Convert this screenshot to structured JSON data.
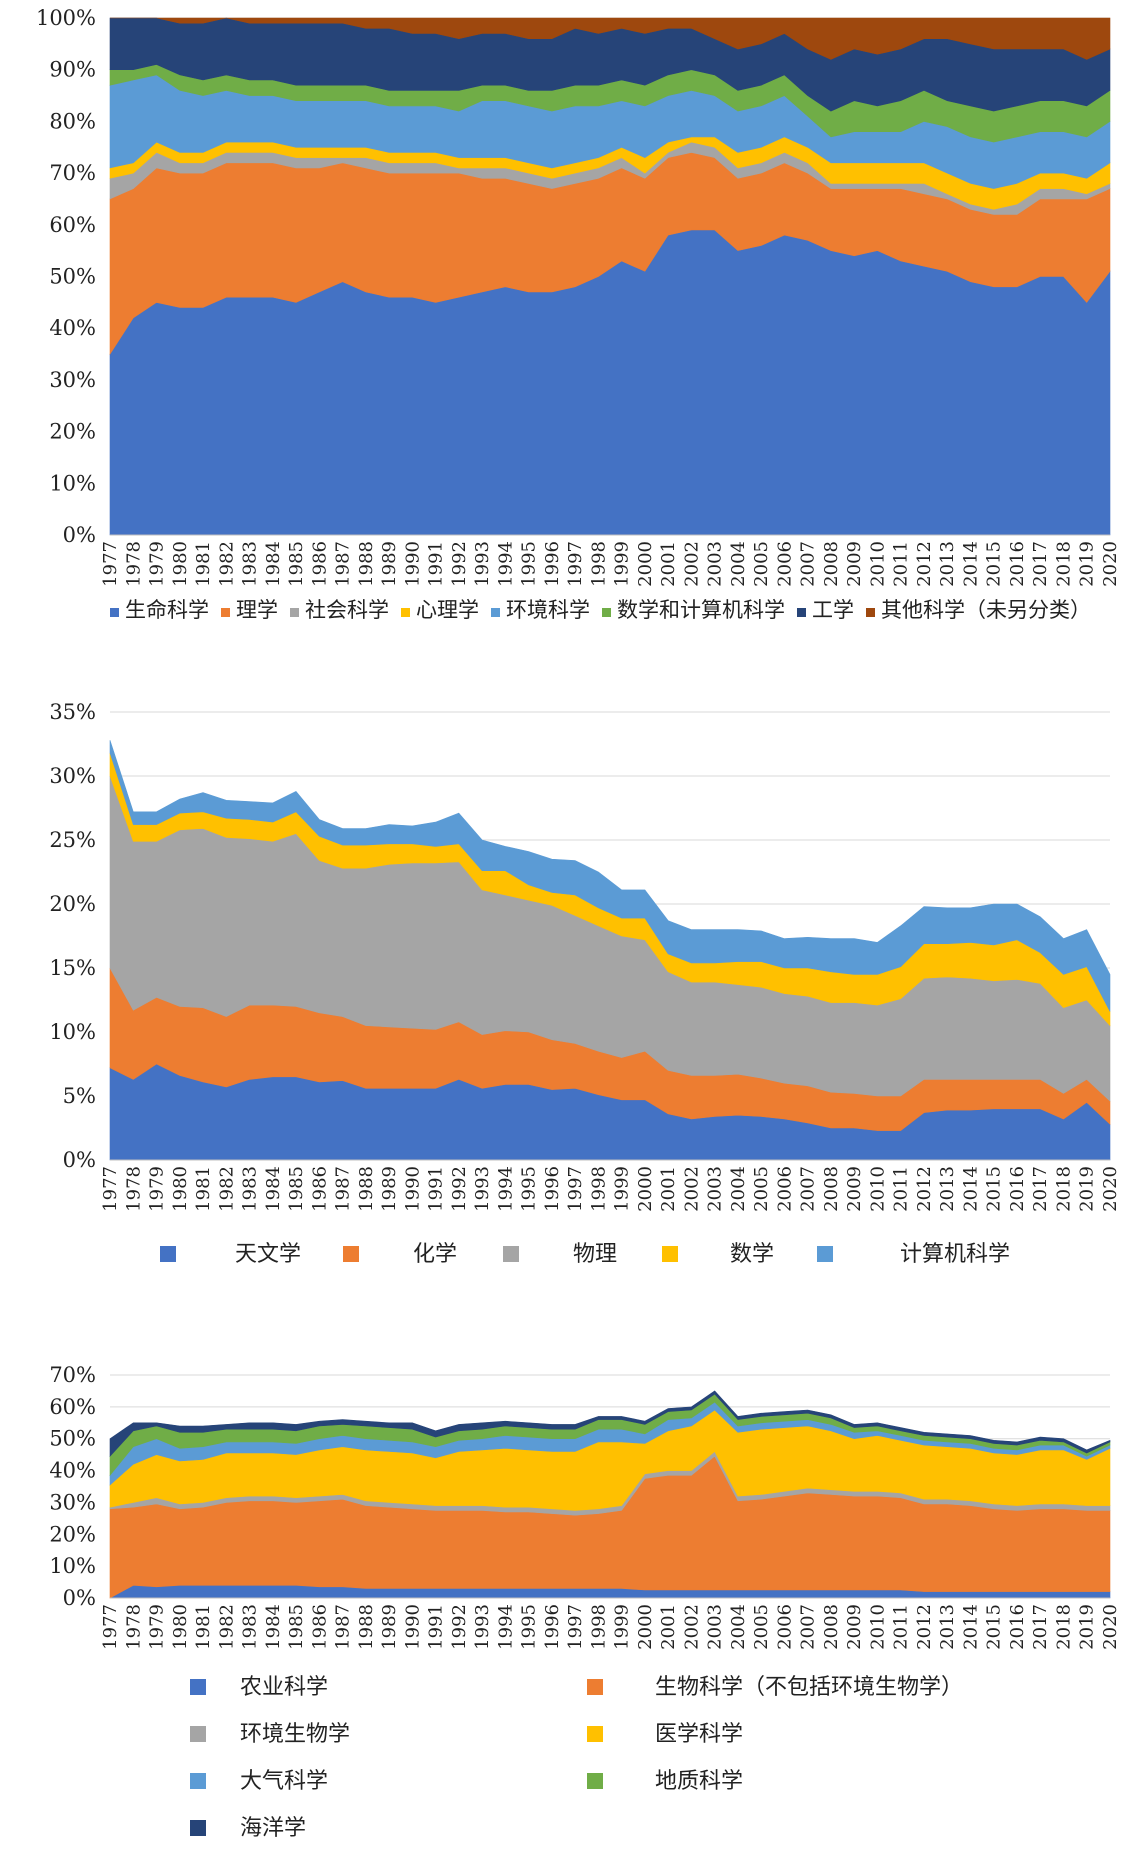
{
  "chart_data": [
    {
      "type": "area",
      "stacked": true,
      "grid": true,
      "legend_placement": "bottom",
      "ylim": [
        0,
        100
      ],
      "y_unit": "%",
      "yticks": [
        "0%",
        "10%",
        "20%",
        "30%",
        "40%",
        "50%",
        "60%",
        "70%",
        "80%",
        "90%",
        "100%"
      ],
      "x": [
        "1977",
        "1978",
        "1979",
        "1980",
        "1981",
        "1982",
        "1983",
        "1984",
        "1985",
        "1986",
        "1987",
        "1988",
        "1989",
        "1990",
        "1991",
        "1992",
        "1993",
        "1994",
        "1995",
        "1996",
        "1997",
        "1998",
        "1999",
        "2000",
        "2001",
        "2002",
        "2003",
        "2004",
        "2005",
        "2006",
        "2007",
        "2008",
        "2009",
        "2010",
        "2011",
        "2012",
        "2013",
        "2014",
        "2015",
        "2016",
        "2017",
        "2018",
        "2019",
        "2020"
      ],
      "series": [
        {
          "name": "生命科学",
          "color": "#4472C4",
          "values": [
            35,
            42,
            45,
            44,
            44,
            46,
            46,
            46,
            45,
            47,
            49,
            47,
            46,
            46,
            45,
            46,
            47,
            48,
            47,
            47,
            48,
            50,
            53,
            51,
            58,
            59,
            59,
            55,
            56,
            58,
            57,
            55,
            54,
            55,
            53,
            52,
            51,
            49,
            48,
            48,
            50,
            50,
            45,
            51
          ]
        },
        {
          "name": "理学",
          "color": "#ED7D31",
          "values": [
            30,
            25,
            26,
            26,
            26,
            26,
            26,
            26,
            26,
            24,
            23,
            24,
            24,
            24,
            25,
            24,
            22,
            21,
            21,
            20,
            20,
            19,
            18,
            18,
            15,
            15,
            14,
            14,
            14,
            14,
            13,
            12,
            13,
            12,
            14,
            14,
            14,
            14,
            14,
            14,
            15,
            15,
            20,
            16
          ]
        },
        {
          "name": "社会科学",
          "color": "#A5A5A5",
          "values": [
            4,
            3,
            3,
            2,
            2,
            2,
            2,
            2,
            2,
            2,
            1,
            2,
            2,
            2,
            2,
            1,
            2,
            2,
            2,
            2,
            2,
            2,
            2,
            1,
            1,
            2,
            2,
            2,
            2,
            2,
            2,
            1,
            1,
            1,
            1,
            2,
            1,
            1,
            1,
            2,
            2,
            2,
            1,
            1
          ]
        },
        {
          "name": "心理学",
          "color": "#FFC000",
          "values": [
            2,
            2,
            2,
            2,
            2,
            2,
            2,
            2,
            2,
            2,
            2,
            2,
            2,
            2,
            2,
            2,
            2,
            2,
            2,
            2,
            2,
            2,
            2,
            3,
            2,
            1,
            2,
            3,
            3,
            3,
            3,
            4,
            4,
            4,
            4,
            4,
            4,
            4,
            4,
            4,
            3,
            3,
            3,
            4
          ]
        },
        {
          "name": "环境科学",
          "color": "#5B9BD5",
          "values": [
            16,
            16,
            13,
            12,
            11,
            10,
            9,
            9,
            9,
            9,
            9,
            9,
            9,
            9,
            9,
            9,
            11,
            11,
            11,
            11,
            11,
            10,
            9,
            10,
            9,
            9,
            8,
            8,
            8,
            8,
            6,
            5,
            6,
            6,
            6,
            8,
            9,
            9,
            9,
            9,
            8,
            8,
            8,
            8
          ]
        },
        {
          "name": "数学和计算机科学",
          "color": "#70AD47",
          "values": [
            3,
            2,
            2,
            3,
            3,
            3,
            3,
            3,
            3,
            3,
            3,
            3,
            3,
            3,
            3,
            4,
            3,
            3,
            3,
            4,
            4,
            4,
            4,
            4,
            4,
            4,
            4,
            4,
            4,
            4,
            4,
            5,
            6,
            5,
            6,
            6,
            5,
            6,
            6,
            6,
            6,
            6,
            6,
            6
          ]
        },
        {
          "name": "工学",
          "color": "#264478",
          "values": [
            10,
            10,
            9,
            10,
            11,
            11,
            11,
            11,
            12,
            12,
            12,
            11,
            12,
            11,
            11,
            10,
            10,
            10,
            10,
            10,
            11,
            10,
            10,
            10,
            9,
            8,
            7,
            8,
            8,
            8,
            9,
            10,
            10,
            10,
            10,
            10,
            12,
            12,
            12,
            11,
            10,
            10,
            9,
            8
          ]
        },
        {
          "name": "其他科学（未另分类）",
          "color": "#9E480E",
          "values": [
            0,
            0,
            0,
            1,
            1,
            0,
            1,
            1,
            1,
            1,
            1,
            2,
            2,
            3,
            3,
            4,
            3,
            3,
            4,
            4,
            4,
            3,
            2,
            3,
            2,
            2,
            4,
            6,
            5,
            3,
            6,
            8,
            6,
            7,
            6,
            4,
            4,
            5,
            6,
            6,
            6,
            6,
            8,
            6
          ]
        }
      ]
    },
    {
      "type": "area",
      "stacked": true,
      "grid": true,
      "legend_placement": "bottom",
      "ylim": [
        0,
        35
      ],
      "y_unit": "%",
      "yticks": [
        "0%",
        "5%",
        "10%",
        "15%",
        "20%",
        "25%",
        "30%",
        "35%"
      ],
      "x": [
        "1977",
        "1978",
        "1979",
        "1980",
        "1981",
        "1982",
        "1983",
        "1984",
        "1985",
        "1986",
        "1987",
        "1988",
        "1989",
        "1990",
        "1991",
        "1992",
        "1993",
        "1994",
        "1995",
        "1996",
        "1997",
        "1998",
        "1999",
        "2000",
        "2001",
        "2002",
        "2003",
        "2004",
        "2005",
        "2006",
        "2007",
        "2008",
        "2009",
        "2010",
        "2011",
        "2012",
        "2013",
        "2014",
        "2015",
        "2016",
        "2017",
        "2018",
        "2019",
        "2020"
      ],
      "series": [
        {
          "name": "天文学",
          "color": "#4472C4",
          "values": [
            7.2,
            6.3,
            7.5,
            6.6,
            6.1,
            5.7,
            6.3,
            6.5,
            6.5,
            6.1,
            6.2,
            5.6,
            5.6,
            5.6,
            5.6,
            6.3,
            5.6,
            5.9,
            5.9,
            5.5,
            5.6,
            5.1,
            4.7,
            4.7,
            3.6,
            3.2,
            3.4,
            3.5,
            3.4,
            3.2,
            2.9,
            2.5,
            2.5,
            2.3,
            2.3,
            3.7,
            3.9,
            3.9,
            4.0,
            4.0,
            4.0,
            3.2,
            4.5,
            2.8
          ]
        },
        {
          "name": "化学",
          "color": "#ED7D31",
          "values": [
            7.8,
            5.4,
            5.2,
            5.4,
            5.8,
            5.5,
            5.8,
            5.6,
            5.5,
            5.4,
            5.0,
            4.9,
            4.8,
            4.7,
            4.6,
            4.5,
            4.2,
            4.2,
            4.1,
            3.9,
            3.5,
            3.4,
            3.3,
            3.8,
            3.4,
            3.4,
            3.2,
            3.2,
            3.0,
            2.8,
            2.9,
            2.8,
            2.7,
            2.7,
            2.7,
            2.6,
            2.4,
            2.4,
            2.3,
            2.3,
            2.3,
            2.0,
            1.8,
            1.8
          ]
        },
        {
          "name": "物理",
          "color": "#A5A5A5",
          "values": [
            15.0,
            13.2,
            12.2,
            13.8,
            14.0,
            14.0,
            13.0,
            12.8,
            13.5,
            11.9,
            11.6,
            12.3,
            12.7,
            12.9,
            13.0,
            12.5,
            11.3,
            10.6,
            10.3,
            10.5,
            10.0,
            9.8,
            9.5,
            8.7,
            7.7,
            7.3,
            7.3,
            7.0,
            7.1,
            7.0,
            7.0,
            7.0,
            7.1,
            7.1,
            7.6,
            7.9,
            8.0,
            7.9,
            7.7,
            7.8,
            7.5,
            6.7,
            6.2,
            5.9
          ]
        },
        {
          "name": "数学",
          "color": "#FFC000",
          "values": [
            1.8,
            1.3,
            1.3,
            1.3,
            1.3,
            1.5,
            1.5,
            1.5,
            1.7,
            1.9,
            1.8,
            1.8,
            1.6,
            1.5,
            1.3,
            1.4,
            1.5,
            1.9,
            1.2,
            1.0,
            1.6,
            1.4,
            1.4,
            1.7,
            1.4,
            1.5,
            1.5,
            1.8,
            2.0,
            2.0,
            2.2,
            2.4,
            2.2,
            2.4,
            2.5,
            2.7,
            2.6,
            2.8,
            2.8,
            3.1,
            2.4,
            2.6,
            2.6,
            1.1
          ]
        },
        {
          "name": "计算机科学",
          "color": "#5B9BD5",
          "values": [
            1.0,
            1.0,
            1.0,
            1.1,
            1.5,
            1.4,
            1.4,
            1.5,
            1.6,
            1.3,
            1.3,
            1.3,
            1.5,
            1.4,
            1.9,
            2.4,
            2.4,
            1.9,
            2.6,
            2.6,
            2.7,
            2.8,
            2.2,
            2.2,
            2.6,
            2.6,
            2.6,
            2.5,
            2.4,
            2.3,
            2.4,
            2.6,
            2.8,
            2.5,
            3.2,
            2.9,
            2.8,
            2.7,
            3.2,
            2.8,
            2.8,
            2.8,
            2.9,
            2.9
          ]
        }
      ]
    },
    {
      "type": "area",
      "stacked": true,
      "grid": true,
      "legend_placement": "bottom",
      "ylim": [
        0,
        70
      ],
      "y_unit": "%",
      "yticks": [
        "0%",
        "10%",
        "20%",
        "30%",
        "40%",
        "50%",
        "60%",
        "70%"
      ],
      "x": [
        "1977",
        "1978",
        "1979",
        "1980",
        "1981",
        "1982",
        "1983",
        "1984",
        "1985",
        "1986",
        "1987",
        "1988",
        "1989",
        "1990",
        "1991",
        "1992",
        "1993",
        "1994",
        "1995",
        "1996",
        "1997",
        "1998",
        "1999",
        "2000",
        "2001",
        "2002",
        "2003",
        "2004",
        "2005",
        "2006",
        "2007",
        "2008",
        "2009",
        "2010",
        "2011",
        "2012",
        "2013",
        "2014",
        "2015",
        "2016",
        "2017",
        "2018",
        "2019",
        "2020"
      ],
      "series": [
        {
          "name": "农业科学",
          "color": "#4472C4",
          "values": [
            0,
            4,
            3.5,
            4,
            4,
            4,
            4,
            4,
            4,
            3.5,
            3.5,
            3,
            3,
            3,
            3,
            3,
            3,
            3,
            3,
            3,
            3,
            3,
            3,
            2.5,
            2.5,
            2.5,
            2.5,
            2.5,
            2.5,
            2.5,
            2.5,
            2.5,
            2.5,
            2.5,
            2.5,
            2,
            2,
            2,
            2,
            2,
            2,
            2,
            2,
            2
          ]
        },
        {
          "name": "生物科学（不包括环境生物学）",
          "color": "#ED7D31",
          "values": [
            28,
            24.5,
            26,
            24,
            24.5,
            26,
            26.5,
            26.5,
            26,
            27,
            27.5,
            26,
            25.5,
            25,
            24.5,
            24.5,
            24.5,
            24,
            24,
            23.5,
            23,
            23.5,
            24.5,
            35,
            36,
            36,
            42,
            28,
            28.5,
            29.5,
            30.5,
            30,
            29.5,
            29.5,
            29,
            27.5,
            27.5,
            27,
            26,
            25.5,
            26,
            26,
            25.5,
            25.5
          ]
        },
        {
          "name": "环境生物学",
          "color": "#A5A5A5",
          "values": [
            0.5,
            1.5,
            2,
            1.5,
            1.5,
            1.5,
            1.5,
            1.5,
            1.5,
            1.5,
            1.5,
            1.5,
            1.5,
            1.5,
            1.5,
            1.5,
            1.5,
            1.5,
            1.5,
            1.5,
            1.5,
            1.5,
            1.5,
            1.5,
            1.5,
            1.5,
            1.5,
            1.5,
            1.5,
            1.5,
            1.5,
            1.5,
            1.5,
            1.5,
            1.5,
            1.5,
            1.5,
            1.5,
            1.5,
            1.5,
            1.5,
            1.5,
            1.5,
            1.5
          ]
        },
        {
          "name": "医学科学",
          "color": "#FFC000",
          "values": [
            7,
            12,
            13.5,
            13.5,
            13.5,
            14,
            13.5,
            13.5,
            13.5,
            14.5,
            15,
            16,
            16,
            16,
            15,
            17,
            17.5,
            18.5,
            18,
            18,
            18.5,
            21,
            20,
            9.5,
            12.5,
            14,
            13,
            20,
            20.5,
            20,
            19.5,
            18.5,
            16.5,
            17.5,
            16.5,
            17,
            16.5,
            16.5,
            16,
            16,
            17,
            17,
            14.5,
            18
          ]
        },
        {
          "name": "大气科学",
          "color": "#5B9BD5",
          "values": [
            3,
            5.5,
            5,
            4,
            4,
            3.5,
            3.5,
            3.5,
            3.5,
            3.5,
            3.5,
            3.5,
            3.5,
            3.5,
            3.5,
            3.5,
            3.5,
            4,
            4,
            4,
            4,
            4,
            4,
            3,
            3.5,
            2.5,
            2.5,
            2,
            2,
            2,
            2,
            2,
            2,
            1.5,
            1.5,
            1.5,
            1.5,
            1.5,
            1.5,
            1.5,
            1.5,
            1.5,
            1,
            1
          ]
        },
        {
          "name": "地质科学",
          "color": "#70AD47",
          "values": [
            6,
            5,
            4,
            5,
            4.5,
            4,
            4,
            4,
            4,
            4,
            3.5,
            4,
            4,
            4,
            3,
            3,
            3,
            3,
            3,
            3,
            3,
            3,
            3,
            3,
            2.5,
            2.5,
            2.5,
            2,
            2,
            2,
            2,
            2,
            1.5,
            1.5,
            1.5,
            1.5,
            1.5,
            1.5,
            1.5,
            1.5,
            1.5,
            1,
            1,
            1
          ]
        },
        {
          "name": "海洋学",
          "color": "#264478",
          "values": [
            5.5,
            2.5,
            1,
            2,
            2,
            1.5,
            2,
            2,
            2,
            1.5,
            1.5,
            1.5,
            1.5,
            2,
            2,
            2,
            2,
            1.5,
            1.5,
            1.5,
            1.5,
            1,
            1,
            1,
            1,
            1,
            1,
            1,
            1,
            1,
            1,
            1,
            1,
            1,
            1,
            1,
            1,
            1,
            1,
            1,
            1,
            1,
            1,
            0.5
          ]
        }
      ]
    }
  ]
}
